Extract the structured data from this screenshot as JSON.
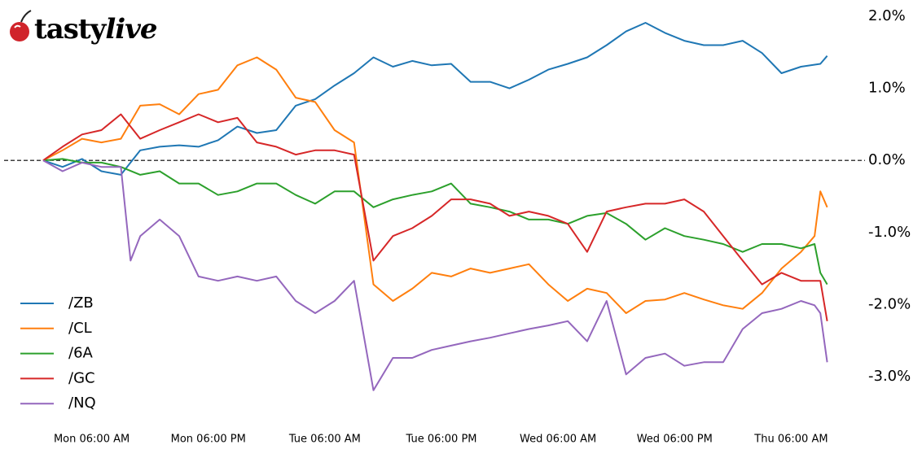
{
  "logo": [
    "tasty",
    "live"
  ],
  "chart_data": {
    "type": "line",
    "xlim": [
      0.5,
      84
    ],
    "ylim": [
      -3.5,
      2.2
    ],
    "xticks": [
      {
        "value": 6,
        "label": "Mon 06:00 AM"
      },
      {
        "value": 18,
        "label": "Mon 06:00 PM"
      },
      {
        "value": 30,
        "label": "Tue 06:00 AM"
      },
      {
        "value": 42,
        "label": "Tue 06:00 PM"
      },
      {
        "value": 54,
        "label": "Wed 06:00 AM"
      },
      {
        "value": 66,
        "label": "Wed 06:00 PM"
      },
      {
        "value": 78,
        "label": "Thu 06:00 AM"
      }
    ],
    "yticks": [
      {
        "value": 2,
        "label": "2.0%"
      },
      {
        "value": 1,
        "label": "1.0%"
      },
      {
        "value": 0,
        "label": "0.0%"
      },
      {
        "value": -1,
        "label": "-1.0%"
      },
      {
        "value": -2,
        "label": "-2.0%"
      },
      {
        "value": -3,
        "label": "-3.0%"
      }
    ],
    "hline": 0,
    "legend": "lower left",
    "grid": false,
    "series": [
      {
        "name": "/ZB",
        "color": "#1f77b4",
        "x": [
          1,
          3,
          5,
          7,
          9,
          11,
          13,
          15,
          17,
          19,
          21,
          23,
          25,
          27,
          29,
          31,
          33,
          35,
          37,
          39,
          41,
          43,
          45,
          47,
          49,
          51,
          53,
          55,
          57,
          59,
          61,
          63,
          65,
          67,
          69,
          71,
          73,
          75,
          77,
          79,
          81,
          81.7
        ],
        "values": [
          0,
          -0.09,
          0.02,
          -0.15,
          -0.2,
          0.14,
          0.19,
          0.21,
          0.19,
          0.28,
          0.47,
          0.38,
          0.42,
          0.76,
          0.85,
          1.04,
          1.21,
          1.43,
          1.3,
          1.38,
          1.32,
          1.34,
          1.09,
          1.09,
          1.0,
          1.12,
          1.26,
          1.34,
          1.43,
          1.6,
          1.79,
          1.91,
          1.77,
          1.66,
          1.6,
          1.6,
          1.66,
          1.49,
          1.21,
          1.3,
          1.34,
          1.45
        ]
      },
      {
        "name": "/CL",
        "color": "#ff7f0e",
        "x": [
          1,
          3,
          5,
          7,
          9,
          11,
          13,
          15,
          17,
          19,
          21,
          23,
          25,
          27,
          29,
          31,
          33,
          35,
          37,
          39,
          41,
          43,
          45,
          47,
          49,
          51,
          53,
          55,
          57,
          59,
          61,
          63,
          65,
          67,
          69,
          71,
          73,
          75,
          77,
          79,
          80.4,
          81,
          81.7
        ],
        "values": [
          0,
          0.14,
          0.3,
          0.25,
          0.3,
          0.76,
          0.78,
          0.64,
          0.92,
          0.98,
          1.32,
          1.43,
          1.26,
          0.87,
          0.81,
          0.42,
          0.25,
          -1.72,
          -1.95,
          -1.78,
          -1.56,
          -1.61,
          -1.5,
          -1.56,
          -1.5,
          -1.44,
          -1.72,
          -1.95,
          -1.78,
          -1.84,
          -2.12,
          -1.95,
          -1.93,
          -1.84,
          -1.93,
          -2.01,
          -2.06,
          -1.84,
          -1.5,
          -1.27,
          -1.05,
          -0.43,
          -0.65
        ]
      },
      {
        "name": "/6A",
        "color": "#2ca02c",
        "x": [
          1,
          3,
          5,
          7,
          9,
          11,
          13,
          15,
          17,
          19,
          21,
          23,
          25,
          27,
          29,
          31,
          33,
          35,
          37,
          39,
          41,
          43,
          45,
          47,
          49,
          51,
          53,
          55,
          57,
          59,
          61,
          63,
          65,
          67,
          69,
          71,
          73,
          75,
          77,
          79,
          80.4,
          81,
          81.7
        ],
        "values": [
          0,
          0.02,
          -0.03,
          -0.03,
          -0.09,
          -0.2,
          -0.15,
          -0.32,
          -0.32,
          -0.48,
          -0.43,
          -0.32,
          -0.32,
          -0.48,
          -0.6,
          -0.43,
          -0.43,
          -0.65,
          -0.54,
          -0.48,
          -0.43,
          -0.32,
          -0.6,
          -0.65,
          -0.71,
          -0.82,
          -0.82,
          -0.88,
          -0.77,
          -0.73,
          -0.88,
          -1.1,
          -0.94,
          -1.05,
          -1.1,
          -1.16,
          -1.27,
          -1.16,
          -1.16,
          -1.22,
          -1.16,
          -1.56,
          -1.72
        ]
      },
      {
        "name": "/GC",
        "color": "#d62728",
        "x": [
          1,
          3,
          5,
          7,
          9,
          11,
          13,
          15,
          17,
          19,
          21,
          23,
          25,
          27,
          29,
          31,
          33,
          35,
          37,
          39,
          41,
          43,
          45,
          47,
          49,
          51,
          53,
          55,
          57,
          59,
          61,
          63,
          65,
          67,
          69,
          71,
          73,
          75,
          77,
          79,
          81,
          81.7
        ],
        "values": [
          0,
          0.19,
          0.36,
          0.42,
          0.64,
          0.3,
          0.42,
          0.53,
          0.64,
          0.53,
          0.59,
          0.25,
          0.19,
          0.08,
          0.14,
          0.14,
          0.08,
          -1.39,
          -1.05,
          -0.94,
          -0.77,
          -0.54,
          -0.54,
          -0.6,
          -0.77,
          -0.71,
          -0.77,
          -0.88,
          -1.27,
          -0.71,
          -0.65,
          -0.6,
          -0.6,
          -0.54,
          -0.71,
          -1.05,
          -1.39,
          -1.72,
          -1.56,
          -1.67,
          -1.67,
          -2.23
        ]
      },
      {
        "name": "/NQ",
        "color": "#9467bd",
        "x": [
          1,
          3,
          5,
          7,
          9,
          10,
          11,
          13,
          15,
          17,
          19,
          21,
          23,
          25,
          27,
          29,
          31,
          33,
          35,
          37,
          39,
          41,
          43,
          45,
          47,
          49,
          51,
          53,
          55,
          57,
          59,
          61,
          63,
          65,
          67,
          69,
          71,
          73,
          75,
          77,
          79,
          80.4,
          81,
          81.7
        ],
        "values": [
          0,
          -0.15,
          -0.03,
          -0.09,
          -0.09,
          -1.39,
          -1.05,
          -0.82,
          -1.05,
          -1.61,
          -1.67,
          -1.61,
          -1.67,
          -1.61,
          -1.95,
          -2.12,
          -1.95,
          -1.67,
          -3.19,
          -2.74,
          -2.74,
          -2.63,
          -2.57,
          -2.51,
          -2.46,
          -2.4,
          -2.34,
          -2.29,
          -2.23,
          -2.51,
          -1.95,
          -2.97,
          -2.74,
          -2.68,
          -2.85,
          -2.8,
          -2.8,
          -2.34,
          -2.12,
          -2.06,
          -1.95,
          -2.01,
          -2.12,
          -2.8
        ]
      }
    ]
  }
}
